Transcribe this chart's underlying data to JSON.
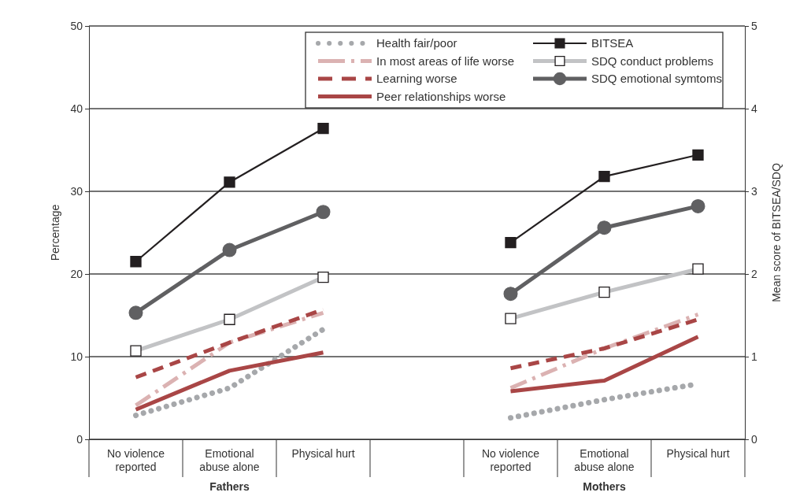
{
  "chart_data": {
    "type": "line",
    "ylabel": "Percentage",
    "y2label": "Mean score of BITSEA/SDQ",
    "categories": [
      "No violence reported",
      "Emotional abuse alone",
      "Physical hurt",
      null,
      "No violence reported",
      "Emotional abuse alone",
      "Physical hurt"
    ],
    "ylim": [
      0,
      50
    ],
    "yticks": [
      0,
      10,
      20,
      30,
      40,
      50
    ],
    "y2lim": [
      0,
      5
    ],
    "y2ticks": [
      0,
      1,
      2,
      3,
      4,
      5
    ],
    "grid": "y",
    "legend": "top right",
    "annotations": [
      "Fathers",
      "Mothers"
    ],
    "series": [
      {
        "name": "Health fair/poor",
        "color": "#a6a8ab",
        "line_style": "dotted",
        "values": [
          2.9,
          6.2,
          13.3,
          null,
          2.6,
          4.8,
          6.7
        ]
      },
      {
        "name": "In most areas of life worse",
        "color": "#dbb2b2",
        "line_style": "dashdot",
        "values": [
          4.1,
          11.7,
          15.3,
          null,
          6.2,
          11.0,
          15.1
        ]
      },
      {
        "name": "Learning worse",
        "color": "#a94646",
        "line_style": "dashed",
        "values": [
          7.5,
          11.7,
          15.7,
          null,
          8.6,
          11.0,
          14.5
        ]
      },
      {
        "name": "Peer relationships worse",
        "color": "#a94646",
        "line_style": "solid",
        "values": [
          3.6,
          8.3,
          10.5,
          null,
          5.8,
          7.1,
          12.4
        ]
      },
      {
        "name": "BITSEA",
        "color": "#231f20",
        "axis": "y2",
        "marker": "square",
        "values": [
          2.15,
          3.11,
          3.76,
          null,
          2.38,
          3.18,
          3.44
        ]
      },
      {
        "name": "SDQ conduct problems",
        "color": "#c2c3c5",
        "axis": "y2",
        "marker": "square",
        "values": [
          1.07,
          1.45,
          1.96,
          null,
          1.46,
          1.78,
          2.06
        ]
      },
      {
        "name": "SDQ emotional symtoms",
        "color": "#606062",
        "axis": "y2",
        "marker": "circle",
        "values": [
          1.53,
          2.29,
          2.75,
          null,
          1.76,
          2.56,
          2.82
        ]
      }
    ]
  }
}
